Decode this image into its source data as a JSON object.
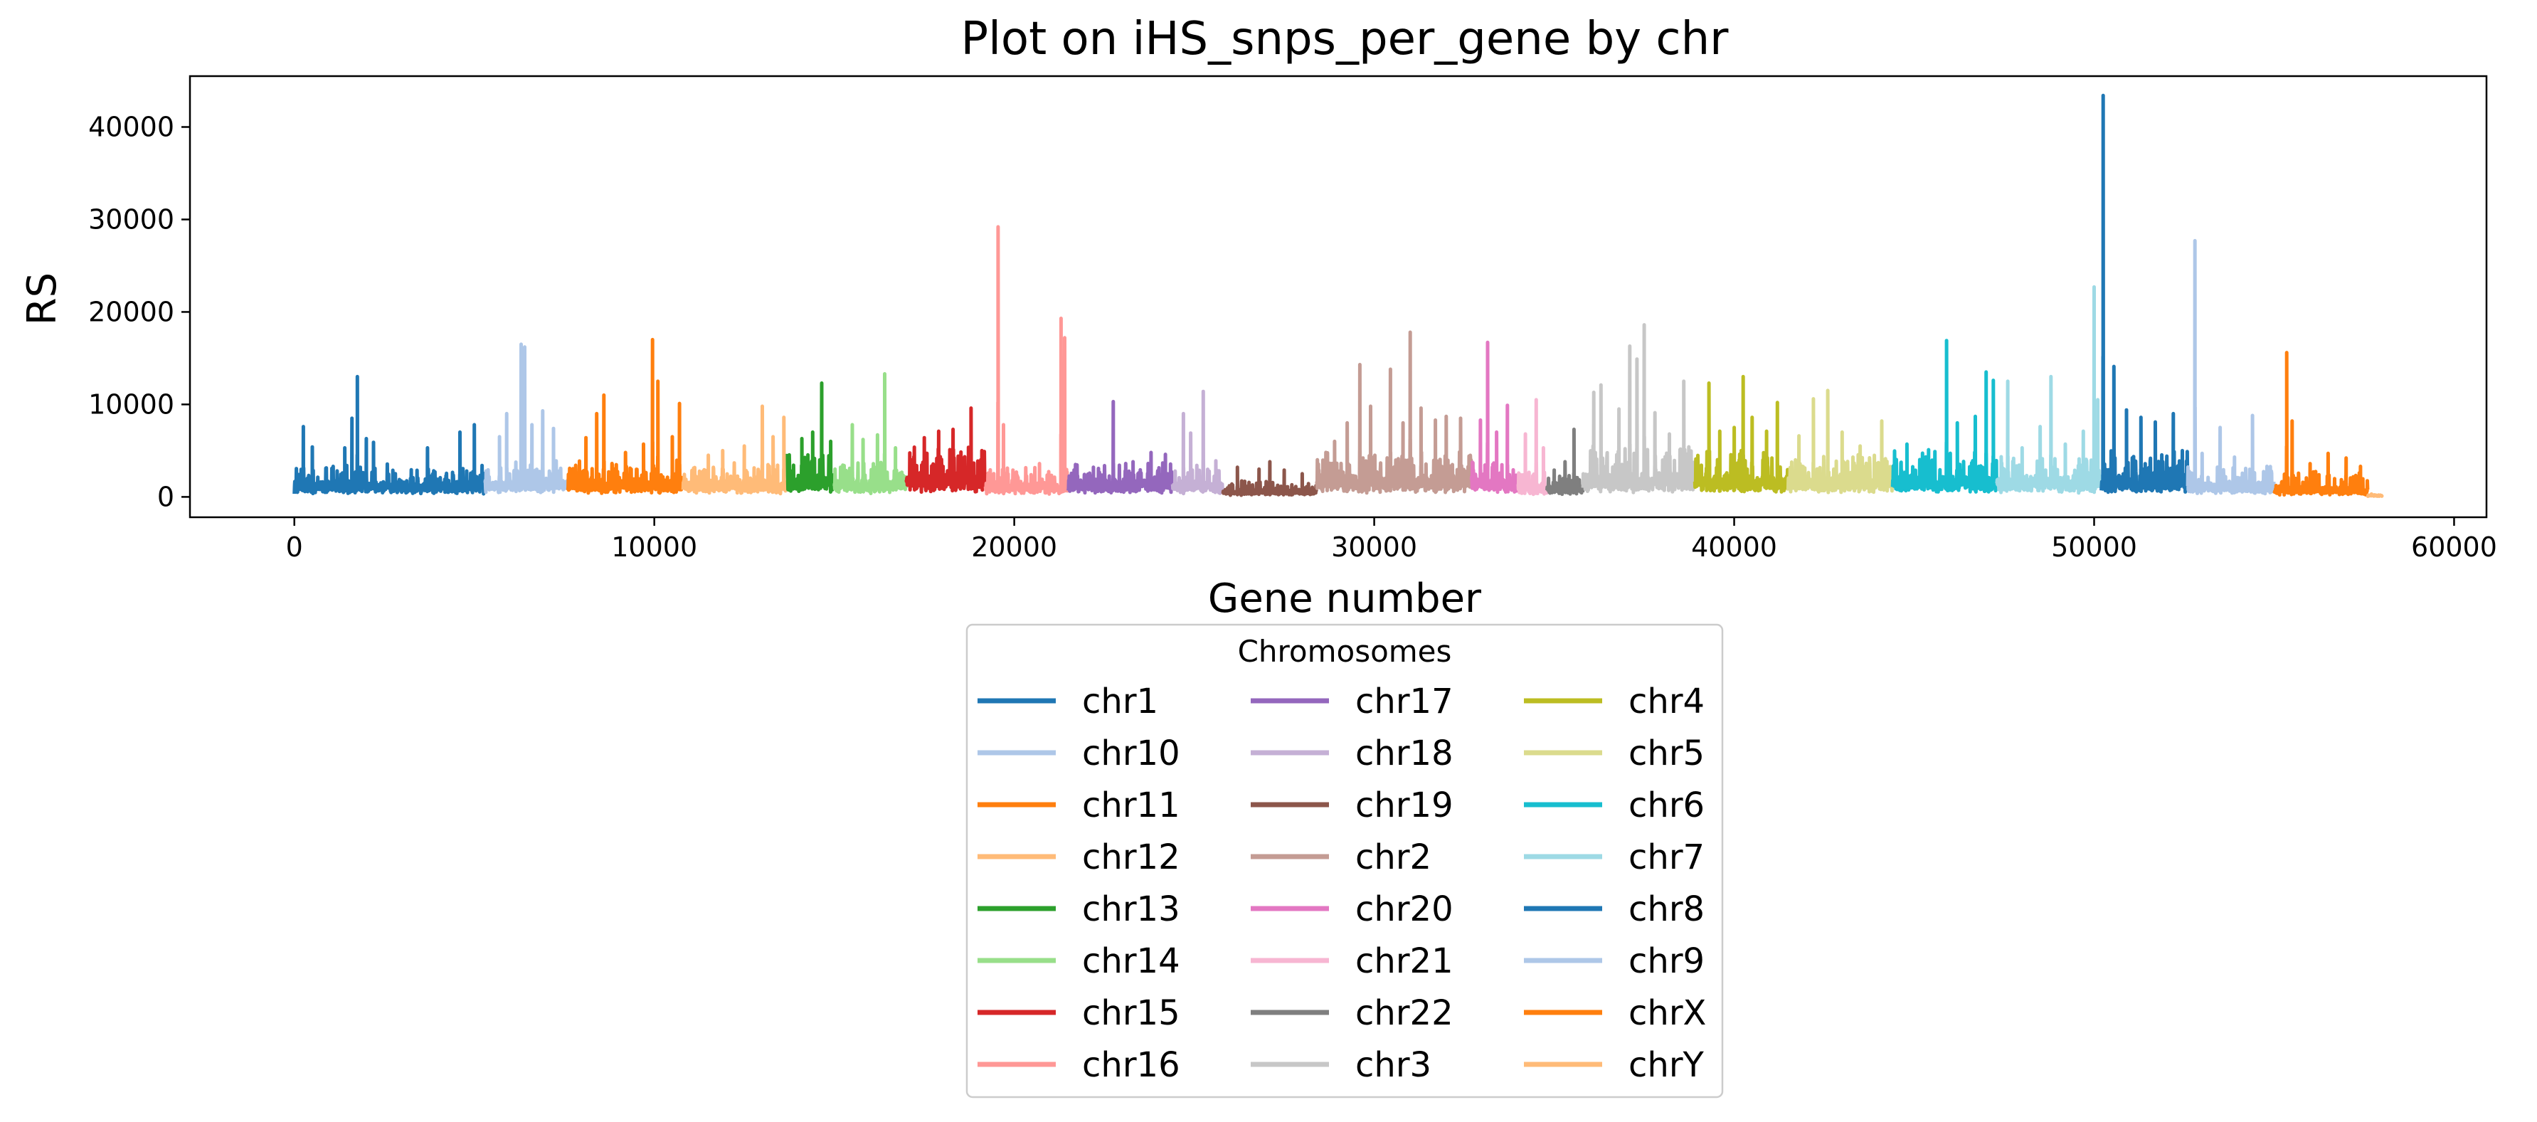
{
  "chart_data": {
    "type": "line",
    "title": "Plot on iHS_snps_per_gene by chr",
    "xlabel": "Gene number",
    "ylabel": "RS",
    "xlim": [
      -2900,
      60900
    ],
    "ylim": [
      -2200,
      45500
    ],
    "x_ticks": [
      0,
      10000,
      20000,
      30000,
      40000,
      50000,
      60000
    ],
    "x_tick_labels": [
      "0",
      "10000",
      "20000",
      "30000",
      "40000",
      "50000",
      "60000"
    ],
    "y_ticks": [
      0,
      10000,
      20000,
      30000,
      40000
    ],
    "y_tick_labels": [
      "0",
      "10000",
      "20000",
      "30000",
      "40000"
    ],
    "grid": false,
    "legend": {
      "title": "Chromosomes",
      "placement": "below plot, center",
      "columns": 3
    },
    "series": [
      {
        "name": "chr1",
        "color": "#1f77b4",
        "x_range": [
          0,
          5300
        ],
        "baseline": 1000,
        "noise": 2600,
        "peaks": [
          [
            250,
            7600
          ],
          [
            500,
            5400
          ],
          [
            1400,
            5300
          ],
          [
            1600,
            8500
          ],
          [
            1750,
            13000
          ],
          [
            2000,
            6300
          ],
          [
            2200,
            5900
          ],
          [
            3700,
            5300
          ],
          [
            4600,
            7000
          ],
          [
            5000,
            7800
          ]
        ]
      },
      {
        "name": "chr10",
        "color": "#aec7e8",
        "x_range": [
          5300,
          7600
        ],
        "baseline": 1200,
        "noise": 3000,
        "peaks": [
          [
            5700,
            6500
          ],
          [
            5900,
            9000
          ],
          [
            6300,
            16500
          ],
          [
            6400,
            16200
          ],
          [
            6600,
            7800
          ],
          [
            6900,
            9300
          ],
          [
            7200,
            7400
          ]
        ]
      },
      {
        "name": "chr11",
        "color": "#ff7f0e",
        "x_range": [
          7600,
          10800
        ],
        "baseline": 1200,
        "noise": 3000,
        "peaks": [
          [
            8100,
            6400
          ],
          [
            8400,
            9000
          ],
          [
            8600,
            11000
          ],
          [
            9200,
            4800
          ],
          [
            9700,
            5700
          ],
          [
            9950,
            17000
          ],
          [
            10100,
            12500
          ],
          [
            10500,
            6500
          ],
          [
            10700,
            10100
          ]
        ]
      },
      {
        "name": "chr12",
        "color": "#ffbb78",
        "x_range": [
          10800,
          13700
        ],
        "baseline": 1100,
        "noise": 2800,
        "peaks": [
          [
            11500,
            4500
          ],
          [
            11900,
            5000
          ],
          [
            12500,
            5500
          ],
          [
            13000,
            9800
          ],
          [
            13300,
            6500
          ],
          [
            13600,
            8600
          ]
        ]
      },
      {
        "name": "chr13",
        "color": "#2ca02c",
        "x_range": [
          13700,
          15000
        ],
        "baseline": 1300,
        "noise": 4000,
        "peaks": [
          [
            14100,
            6300
          ],
          [
            14400,
            7000
          ],
          [
            14650,
            12300
          ],
          [
            14900,
            6000
          ]
        ]
      },
      {
        "name": "chr14",
        "color": "#98df8a",
        "x_range": [
          15000,
          17000
        ],
        "baseline": 1200,
        "noise": 3000,
        "peaks": [
          [
            15500,
            7800
          ],
          [
            15800,
            6200
          ],
          [
            16200,
            6700
          ],
          [
            16400,
            13300
          ],
          [
            16700,
            5300
          ]
        ]
      },
      {
        "name": "chr15",
        "color": "#d62728",
        "x_range": [
          17000,
          19200
        ],
        "baseline": 1500,
        "noise": 4500,
        "peaks": [
          [
            17500,
            6400
          ],
          [
            17900,
            7100
          ],
          [
            18300,
            7300
          ],
          [
            18800,
            9600
          ],
          [
            19100,
            5000
          ]
        ]
      },
      {
        "name": "chr16",
        "color": "#ff9896",
        "x_range": [
          19200,
          21500
        ],
        "baseline": 1000,
        "noise": 2300,
        "peaks": [
          [
            19550,
            29200
          ],
          [
            19700,
            7800
          ],
          [
            20700,
            3600
          ],
          [
            21300,
            19300
          ],
          [
            21400,
            17200
          ]
        ]
      },
      {
        "name": "chr17",
        "color": "#9467bd",
        "x_range": [
          21500,
          24400
        ],
        "baseline": 1200,
        "noise": 2600,
        "peaks": [
          [
            21700,
            3500
          ],
          [
            22200,
            3200
          ],
          [
            22750,
            10300
          ],
          [
            23300,
            3800
          ],
          [
            23800,
            4800
          ],
          [
            24200,
            4600
          ]
        ]
      },
      {
        "name": "chr18",
        "color": "#c5b0d5",
        "x_range": [
          24400,
          25800
        ],
        "baseline": 1100,
        "noise": 2400,
        "peaks": [
          [
            24700,
            9000
          ],
          [
            24900,
            6900
          ],
          [
            25250,
            11400
          ],
          [
            25600,
            3900
          ]
        ]
      },
      {
        "name": "chr19",
        "color": "#8c564b",
        "x_range": [
          25800,
          28400
        ],
        "baseline": 500,
        "noise": 1300,
        "peaks": [
          [
            26200,
            3200
          ],
          [
            26800,
            3000
          ],
          [
            27100,
            3800
          ],
          [
            27500,
            2900
          ],
          [
            28000,
            2500
          ]
        ]
      },
      {
        "name": "chr2",
        "color": "#c49c94",
        "x_range": [
          28400,
          32700
        ],
        "baseline": 1400,
        "noise": 3800,
        "peaks": [
          [
            28900,
            6000
          ],
          [
            29250,
            8000
          ],
          [
            29600,
            14300
          ],
          [
            29900,
            9800
          ],
          [
            30450,
            13800
          ],
          [
            30800,
            8000
          ],
          [
            31000,
            17800
          ],
          [
            31300,
            9600
          ],
          [
            31700,
            8300
          ],
          [
            32000,
            8700
          ],
          [
            32400,
            8500
          ]
        ]
      },
      {
        "name": "chr20",
        "color": "#e377c2",
        "x_range": [
          32700,
          34000
        ],
        "baseline": 1300,
        "noise": 3200,
        "peaks": [
          [
            32950,
            8300
          ],
          [
            33150,
            16700
          ],
          [
            33400,
            7000
          ],
          [
            33700,
            9900
          ]
        ]
      },
      {
        "name": "chr21",
        "color": "#f7b6d2",
        "x_range": [
          34000,
          34800
        ],
        "baseline": 800,
        "noise": 2200,
        "peaks": [
          [
            34200,
            6800
          ],
          [
            34500,
            10500
          ],
          [
            34700,
            5300
          ]
        ]
      },
      {
        "name": "chr22",
        "color": "#7f7f7f",
        "x_range": [
          34800,
          35800
        ],
        "baseline": 800,
        "noise": 1800,
        "peaks": [
          [
            35000,
            2900
          ],
          [
            35300,
            3800
          ],
          [
            35550,
            7300
          ]
        ]
      },
      {
        "name": "chr3",
        "color": "#c7c7c7",
        "x_range": [
          35800,
          38900
        ],
        "baseline": 1500,
        "noise": 4200,
        "peaks": [
          [
            36100,
            11300
          ],
          [
            36300,
            12100
          ],
          [
            36800,
            9500
          ],
          [
            37100,
            16300
          ],
          [
            37300,
            14900
          ],
          [
            37500,
            18600
          ],
          [
            37800,
            9100
          ],
          [
            38200,
            6800
          ],
          [
            38600,
            12500
          ]
        ]
      },
      {
        "name": "chr4",
        "color": "#bcbd22",
        "x_range": [
          38900,
          41500
        ],
        "baseline": 1400,
        "noise": 4000,
        "peaks": [
          [
            39300,
            12300
          ],
          [
            39600,
            7100
          ],
          [
            40000,
            7500
          ],
          [
            40250,
            13000
          ],
          [
            40500,
            8600
          ],
          [
            40900,
            7100
          ],
          [
            41200,
            10200
          ]
        ]
      },
      {
        "name": "chr5",
        "color": "#dbdb8d",
        "x_range": [
          41500,
          44400
        ],
        "baseline": 1300,
        "noise": 3500,
        "peaks": [
          [
            41800,
            6600
          ],
          [
            42200,
            10600
          ],
          [
            42600,
            11500
          ],
          [
            43000,
            7000
          ],
          [
            43500,
            5500
          ],
          [
            44100,
            8200
          ]
        ]
      },
      {
        "name": "chr6",
        "color": "#17becf",
        "x_range": [
          44400,
          47300
        ],
        "baseline": 1300,
        "noise": 3800,
        "peaks": [
          [
            44800,
            5700
          ],
          [
            45400,
            5100
          ],
          [
            45900,
            16900
          ],
          [
            46200,
            8000
          ],
          [
            46700,
            8700
          ],
          [
            47000,
            13500
          ],
          [
            47200,
            12600
          ]
        ]
      },
      {
        "name": "chr7",
        "color": "#9edae5",
        "x_range": [
          47300,
          50200
        ],
        "baseline": 1300,
        "noise": 3800,
        "peaks": [
          [
            47600,
            12500
          ],
          [
            48000,
            5300
          ],
          [
            48500,
            7600
          ],
          [
            48800,
            13000
          ],
          [
            49200,
            5700
          ],
          [
            49700,
            7100
          ],
          [
            50000,
            22700
          ],
          [
            50100,
            10500
          ]
        ]
      },
      {
        "name": "chr8",
        "color": "#1f77b4",
        "x_range": [
          50200,
          52600
        ],
        "baseline": 1300,
        "noise": 3800,
        "peaks": [
          [
            50250,
            43400
          ],
          [
            50550,
            14100
          ],
          [
            50900,
            9400
          ],
          [
            51300,
            8600
          ],
          [
            51700,
            8100
          ],
          [
            52200,
            9000
          ],
          [
            52450,
            5000
          ]
        ]
      },
      {
        "name": "chr9",
        "color": "#aec7e8",
        "x_range": [
          52600,
          55000
        ],
        "baseline": 900,
        "noise": 2600,
        "peaks": [
          [
            52800,
            27700
          ],
          [
            53000,
            4700
          ],
          [
            53500,
            7500
          ],
          [
            53900,
            4300
          ],
          [
            54400,
            8800
          ],
          [
            54800,
            3300
          ]
        ]
      },
      {
        "name": "chrX",
        "color": "#ff7f0e",
        "x_range": [
          55000,
          57600
        ],
        "baseline": 600,
        "noise": 2200,
        "peaks": [
          [
            55350,
            15600
          ],
          [
            55500,
            8200
          ],
          [
            56000,
            3600
          ],
          [
            56500,
            4700
          ],
          [
            57000,
            4200
          ],
          [
            57400,
            3300
          ]
        ]
      },
      {
        "name": "chrY",
        "color": "#ffbb78",
        "x_range": [
          57600,
          58000
        ],
        "baseline": 150,
        "noise": 250,
        "peaks": []
      }
    ]
  }
}
